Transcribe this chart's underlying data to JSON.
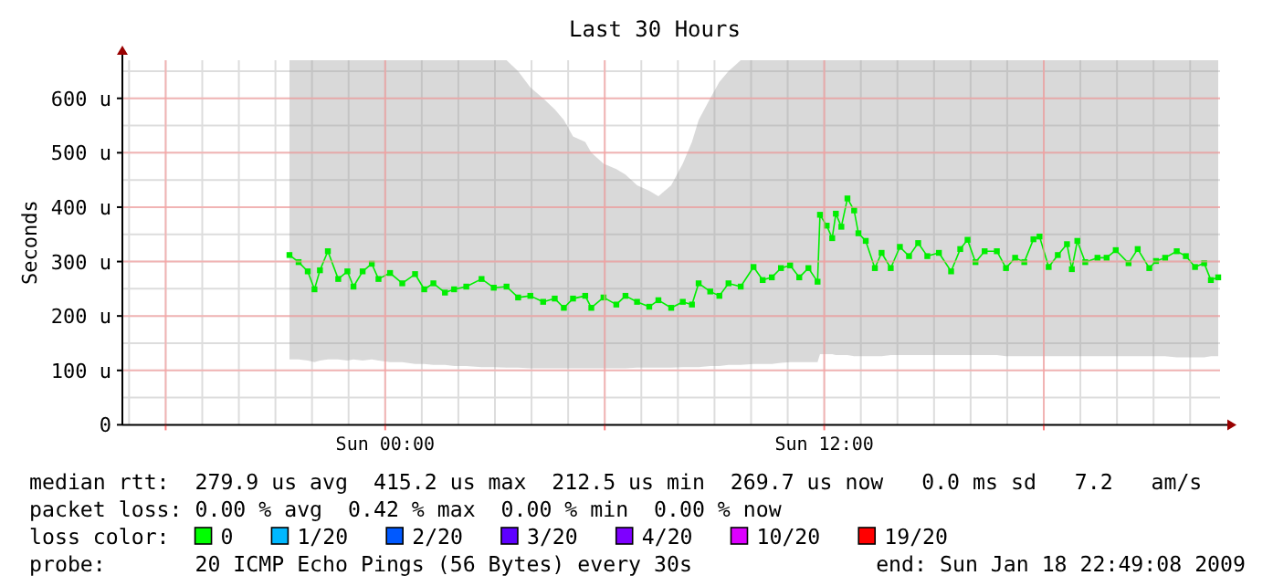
{
  "chart_data": {
    "type": "line",
    "title": "Last 30 Hours",
    "ylabel": "Seconds",
    "xlim": [
      "2009-01-17T16:49",
      "2009-01-18T22:49"
    ],
    "xticks": [
      {
        "value": "2009-01-17T18:00",
        "label": null
      },
      {
        "value": "2009-01-18T00:00",
        "label": "Sun 00:00"
      },
      {
        "value": "2009-01-18T06:00",
        "label": null
      },
      {
        "value": "2009-01-18T12:00",
        "label": "Sun 12:00"
      },
      {
        "value": "2009-01-18T18:00",
        "label": null
      }
    ],
    "ylim": [
      0,
      670
    ],
    "yticks": [
      {
        "value": 0,
        "label": "0"
      },
      {
        "value": 100,
        "label": "100 u"
      },
      {
        "value": 200,
        "label": "200 u"
      },
      {
        "value": 300,
        "label": "300 u"
      },
      {
        "value": 400,
        "label": "400 u"
      },
      {
        "value": 500,
        "label": "500 u"
      },
      {
        "value": 600,
        "label": "600 u"
      }
    ],
    "grid": true,
    "marker": "square",
    "x": [
      "2009-01-17T21:23",
      "2009-01-17T21:38",
      "2009-01-17T21:53",
      "2009-01-17T22:04",
      "2009-01-17T22:13",
      "2009-01-17T22:26",
      "2009-01-17T22:43",
      "2009-01-17T22:58",
      "2009-01-17T23:08",
      "2009-01-17T23:23",
      "2009-01-17T23:38",
      "2009-01-17T23:49",
      "2009-01-18T00:08",
      "2009-01-18T00:28",
      "2009-01-18T00:49",
      "2009-01-18T01:04",
      "2009-01-18T01:19",
      "2009-01-18T01:38",
      "2009-01-18T01:53",
      "2009-01-18T02:13",
      "2009-01-18T02:38",
      "2009-01-18T02:58",
      "2009-01-18T03:19",
      "2009-01-18T03:38",
      "2009-01-18T03:58",
      "2009-01-18T04:19",
      "2009-01-18T04:38",
      "2009-01-18T04:53",
      "2009-01-18T05:08",
      "2009-01-18T05:28",
      "2009-01-18T05:38",
      "2009-01-18T05:58",
      "2009-01-18T06:19",
      "2009-01-18T06:34",
      "2009-01-18T06:53",
      "2009-01-18T07:13",
      "2009-01-18T07:28",
      "2009-01-18T07:49",
      "2009-01-18T08:08",
      "2009-01-18T08:23",
      "2009-01-18T08:34",
      "2009-01-18T08:53",
      "2009-01-18T09:08",
      "2009-01-18T09:23",
      "2009-01-18T09:43",
      "2009-01-18T10:04",
      "2009-01-18T10:19",
      "2009-01-18T10:34",
      "2009-01-18T10:49",
      "2009-01-18T11:04",
      "2009-01-18T11:19",
      "2009-01-18T11:34",
      "2009-01-18T11:49",
      "2009-01-18T11:53",
      "2009-01-18T12:04",
      "2009-01-18T12:13",
      "2009-01-18T12:19",
      "2009-01-18T12:28",
      "2009-01-18T12:38",
      "2009-01-18T12:49",
      "2009-01-18T12:56",
      "2009-01-18T13:08",
      "2009-01-18T13:23",
      "2009-01-18T13:34",
      "2009-01-18T13:49",
      "2009-01-18T14:04",
      "2009-01-18T14:19",
      "2009-01-18T14:34",
      "2009-01-18T14:49",
      "2009-01-18T15:08",
      "2009-01-18T15:28",
      "2009-01-18T15:43",
      "2009-01-18T15:55",
      "2009-01-18T16:08",
      "2009-01-18T16:23",
      "2009-01-18T16:43",
      "2009-01-18T16:58",
      "2009-01-18T17:13",
      "2009-01-18T17:28",
      "2009-01-18T17:43",
      "2009-01-18T17:53",
      "2009-01-18T18:08",
      "2009-01-18T18:23",
      "2009-01-18T18:38",
      "2009-01-18T18:46",
      "2009-01-18T18:55",
      "2009-01-18T19:08",
      "2009-01-18T19:28",
      "2009-01-18T19:43",
      "2009-01-18T19:58",
      "2009-01-18T20:19",
      "2009-01-18T20:34",
      "2009-01-18T20:53",
      "2009-01-18T21:04",
      "2009-01-18T21:19",
      "2009-01-18T21:38",
      "2009-01-18T21:53",
      "2009-01-18T22:08",
      "2009-01-18T22:23",
      "2009-01-18T22:34",
      "2009-01-18T22:46"
    ],
    "series": [
      {
        "color": "#00ee00",
        "values": [
          312,
          299,
          282,
          249,
          284,
          319,
          268,
          282,
          254,
          282,
          296,
          268,
          279,
          260,
          277,
          249,
          260,
          243,
          249,
          254,
          268,
          252,
          254,
          234,
          237,
          226,
          232,
          215,
          232,
          237,
          215,
          234,
          221,
          237,
          226,
          217,
          229,
          215,
          226,
          221,
          260,
          245,
          237,
          260,
          254,
          290,
          266,
          271,
          288,
          293,
          271,
          288,
          263,
          386,
          366,
          343,
          388,
          364,
          416,
          394,
          352,
          338,
          288,
          316,
          288,
          327,
          310,
          334,
          310,
          316,
          282,
          323,
          340,
          299,
          319,
          319,
          288,
          307,
          299,
          341,
          346,
          290,
          312,
          332,
          286,
          338,
          299,
          307,
          307,
          321,
          297,
          323,
          288,
          301,
          307,
          319,
          310,
          290,
          297,
          266,
          271
        ],
        "lower": [
          120,
          120,
          118,
          115,
          118,
          120,
          120,
          118,
          120,
          118,
          120,
          118,
          115,
          115,
          112,
          112,
          110,
          110,
          108,
          108,
          106,
          106,
          105,
          105,
          104,
          104,
          104,
          104,
          104,
          104,
          104,
          104,
          104,
          104,
          105,
          105,
          105,
          105,
          106,
          106,
          106,
          108,
          108,
          110,
          110,
          112,
          112,
          112,
          114,
          115,
          115,
          115,
          115,
          130,
          130,
          130,
          128,
          128,
          128,
          126,
          126,
          126,
          126,
          126,
          128,
          128,
          128,
          128,
          128,
          128,
          128,
          128,
          128,
          128,
          128,
          128,
          126,
          126,
          126,
          126,
          126,
          126,
          126,
          126,
          126,
          126,
          126,
          126,
          126,
          126,
          126,
          126,
          126,
          126,
          126,
          124,
          124,
          124,
          124,
          126,
          126
        ],
        "upper": [
          670,
          670,
          670,
          670,
          670,
          670,
          670,
          670,
          670,
          670,
          670,
          670,
          670,
          670,
          670,
          670,
          670,
          670,
          670,
          670,
          670,
          670,
          670,
          650,
          620,
          600,
          580,
          560,
          530,
          520,
          500,
          480,
          470,
          460,
          440,
          430,
          420,
          440,
          480,
          520,
          560,
          600,
          630,
          650,
          670,
          670,
          670,
          670,
          670,
          670,
          670,
          670,
          670,
          670,
          670,
          670,
          670,
          670,
          670,
          670,
          670,
          670,
          670,
          670,
          670,
          670,
          670,
          670,
          670,
          670,
          670,
          670,
          670,
          670,
          670,
          670,
          670,
          670,
          670,
          670,
          670,
          670,
          670,
          670,
          670,
          670,
          670,
          670,
          670,
          670,
          670,
          670,
          670,
          670,
          670,
          670,
          670,
          670,
          670,
          670,
          670
        ]
      }
    ],
    "annotations": [
      "median rtt:  279.9 us avg  415.2 us max  212.5 us min  269.7 us now   0.0 ms sd   7.2   am/s",
      "packet loss: 0.00 % avg  0.42 % max  0.00 % min  0.00 % now",
      "loss color:",
      "0",
      "1/20",
      "2/20",
      "3/20",
      "4/20",
      "10/20",
      "19/20",
      "probe:       20 ICMP Echo Pings (56 Bytes) every 30s",
      "end: Sun Jan 18 22:49:08 2009"
    ]
  }
}
